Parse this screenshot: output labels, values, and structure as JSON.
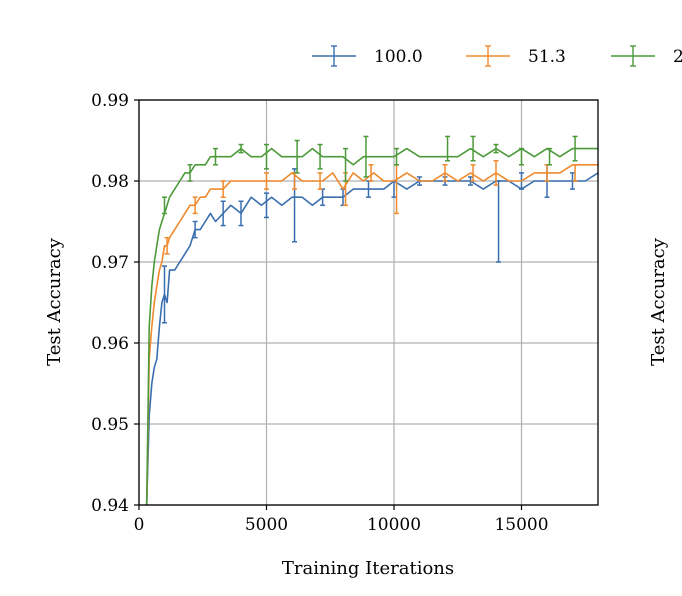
{
  "chart_data": {
    "type": "line",
    "xlabel": "Training Iterations",
    "ylabel": "Test Accuracy",
    "right_panel_ylabel": "Test Accuracy",
    "xlim": [
      0,
      18000
    ],
    "ylim": [
      0.94,
      0.99
    ],
    "xticks": [
      0,
      5000,
      10000,
      15000
    ],
    "xtick_labels": [
      "0",
      "5000",
      "10000",
      "15000"
    ],
    "yticks": [
      0.94,
      0.95,
      0.96,
      0.97,
      0.98,
      0.99
    ],
    "ytick_labels": [
      "0.94",
      "0.95",
      "0.96",
      "0.97",
      "0.98",
      "0.99"
    ],
    "grid": true,
    "legend_position": "top-right (clipped)",
    "series": [
      {
        "name": "100.0",
        "color": "#3a6faf",
        "x": [
          300,
          400,
          500,
          600,
          700,
          800,
          900,
          1000,
          1100,
          1200,
          1400,
          1600,
          1800,
          2000,
          2200,
          2400,
          2600,
          2800,
          3000,
          3300,
          3600,
          4000,
          4400,
          4800,
          5200,
          5600,
          6000,
          6400,
          6800,
          7200,
          7600,
          8000,
          8400,
          8800,
          9200,
          9600,
          10000,
          10500,
          11000,
          11500,
          12000,
          12500,
          13000,
          13500,
          14000,
          14500,
          15000,
          15500,
          16000,
          16500,
          17000,
          17500,
          18000
        ],
        "values": [
          0.94,
          0.951,
          0.955,
          0.957,
          0.958,
          0.962,
          0.965,
          0.966,
          0.965,
          0.969,
          0.969,
          0.97,
          0.971,
          0.972,
          0.974,
          0.974,
          0.975,
          0.976,
          0.975,
          0.976,
          0.977,
          0.976,
          0.978,
          0.977,
          0.978,
          0.977,
          0.978,
          0.978,
          0.977,
          0.978,
          0.978,
          0.978,
          0.979,
          0.979,
          0.979,
          0.979,
          0.98,
          0.979,
          0.98,
          0.98,
          0.98,
          0.98,
          0.98,
          0.979,
          0.98,
          0.98,
          0.979,
          0.98,
          0.98,
          0.98,
          0.98,
          0.98,
          0.981
        ],
        "errorbars": [
          {
            "x": 1000,
            "y": 0.966,
            "err": 0.0035
          },
          {
            "x": 2200,
            "y": 0.974,
            "err": 0.001
          },
          {
            "x": 3300,
            "y": 0.976,
            "err": 0.0015
          },
          {
            "x": 4000,
            "y": 0.976,
            "err": 0.0015
          },
          {
            "x": 5000,
            "y": 0.977,
            "err": 0.0015
          },
          {
            "x": 6100,
            "y": 0.977,
            "err": 0.0045
          },
          {
            "x": 7200,
            "y": 0.978,
            "err": 0.001
          },
          {
            "x": 8000,
            "y": 0.978,
            "err": 0.001
          },
          {
            "x": 9000,
            "y": 0.979,
            "err": 0.001
          },
          {
            "x": 10000,
            "y": 0.979,
            "err": 0.001
          },
          {
            "x": 11000,
            "y": 0.98,
            "err": 0.0005
          },
          {
            "x": 12000,
            "y": 0.98,
            "err": 0.0005
          },
          {
            "x": 13000,
            "y": 0.98,
            "err": 0.0005
          },
          {
            "x": 14100,
            "y": 0.975,
            "err": 0.005
          },
          {
            "x": 15000,
            "y": 0.98,
            "err": 0.001
          },
          {
            "x": 16000,
            "y": 0.98,
            "err": 0.002
          },
          {
            "x": 17000,
            "y": 0.98,
            "err": 0.001
          }
        ]
      },
      {
        "name": "51.3",
        "color": "#f08a2e",
        "x": [
          300,
          400,
          500,
          600,
          700,
          800,
          900,
          1000,
          1100,
          1200,
          1400,
          1600,
          1800,
          2000,
          2200,
          2400,
          2600,
          2800,
          3000,
          3300,
          3600,
          4000,
          4400,
          4800,
          5200,
          5600,
          6000,
          6400,
          6800,
          7200,
          7600,
          8000,
          8400,
          8800,
          9200,
          9600,
          10000,
          10500,
          11000,
          11500,
          12000,
          12500,
          13000,
          13500,
          14000,
          14500,
          15000,
          15500,
          16000,
          16500,
          17000,
          17500,
          18000
        ],
        "values": [
          0.94,
          0.958,
          0.962,
          0.965,
          0.967,
          0.969,
          0.97,
          0.972,
          0.972,
          0.973,
          0.974,
          0.975,
          0.976,
          0.977,
          0.977,
          0.978,
          0.978,
          0.979,
          0.979,
          0.979,
          0.98,
          0.98,
          0.98,
          0.98,
          0.98,
          0.98,
          0.981,
          0.98,
          0.98,
          0.98,
          0.981,
          0.979,
          0.981,
          0.98,
          0.981,
          0.98,
          0.98,
          0.981,
          0.98,
          0.98,
          0.981,
          0.98,
          0.981,
          0.98,
          0.981,
          0.98,
          0.98,
          0.981,
          0.981,
          0.981,
          0.982,
          0.982,
          0.982
        ],
        "errorbars": [
          {
            "x": 1100,
            "y": 0.972,
            "err": 0.001
          },
          {
            "x": 2200,
            "y": 0.977,
            "err": 0.001
          },
          {
            "x": 3300,
            "y": 0.979,
            "err": 0.001
          },
          {
            "x": 5000,
            "y": 0.98,
            "err": 0.001
          },
          {
            "x": 6100,
            "y": 0.98,
            "err": 0.001
          },
          {
            "x": 7100,
            "y": 0.98,
            "err": 0.001
          },
          {
            "x": 8100,
            "y": 0.979,
            "err": 0.002
          },
          {
            "x": 9100,
            "y": 0.981,
            "err": 0.001
          },
          {
            "x": 10100,
            "y": 0.979,
            "err": 0.003
          },
          {
            "x": 12000,
            "y": 0.981,
            "err": 0.001
          },
          {
            "x": 13100,
            "y": 0.981,
            "err": 0.001
          },
          {
            "x": 14000,
            "y": 0.981,
            "err": 0.0015
          },
          {
            "x": 16000,
            "y": 0.981,
            "err": 0.001
          },
          {
            "x": 17100,
            "y": 0.981,
            "err": 0.001
          }
        ]
      },
      {
        "name": "2",
        "color": "#4c9a3a",
        "x": [
          300,
          400,
          500,
          600,
          700,
          800,
          900,
          1000,
          1100,
          1200,
          1400,
          1600,
          1800,
          2000,
          2200,
          2400,
          2600,
          2800,
          3000,
          3300,
          3600,
          4000,
          4400,
          4800,
          5200,
          5600,
          6000,
          6400,
          6800,
          7200,
          7600,
          8000,
          8400,
          8800,
          9200,
          9600,
          10000,
          10500,
          11000,
          11500,
          12000,
          12500,
          13000,
          13500,
          14000,
          14500,
          15000,
          15500,
          16000,
          16500,
          17000,
          17500,
          18000
        ],
        "values": [
          0.94,
          0.962,
          0.967,
          0.97,
          0.972,
          0.974,
          0.975,
          0.976,
          0.977,
          0.978,
          0.979,
          0.98,
          0.981,
          0.981,
          0.982,
          0.982,
          0.982,
          0.983,
          0.983,
          0.983,
          0.983,
          0.984,
          0.983,
          0.983,
          0.984,
          0.983,
          0.983,
          0.983,
          0.984,
          0.983,
          0.983,
          0.983,
          0.982,
          0.983,
          0.983,
          0.983,
          0.983,
          0.984,
          0.983,
          0.983,
          0.983,
          0.983,
          0.984,
          0.983,
          0.984,
          0.983,
          0.984,
          0.983,
          0.984,
          0.983,
          0.984,
          0.984,
          0.984
        ],
        "errorbars": [
          {
            "x": 1000,
            "y": 0.977,
            "err": 0.001
          },
          {
            "x": 2000,
            "y": 0.981,
            "err": 0.001
          },
          {
            "x": 3000,
            "y": 0.983,
            "err": 0.001
          },
          {
            "x": 4000,
            "y": 0.984,
            "err": 0.0005
          },
          {
            "x": 5000,
            "y": 0.983,
            "err": 0.0015
          },
          {
            "x": 6200,
            "y": 0.983,
            "err": 0.002
          },
          {
            "x": 7100,
            "y": 0.983,
            "err": 0.0015
          },
          {
            "x": 8100,
            "y": 0.982,
            "err": 0.002
          },
          {
            "x": 8900,
            "y": 0.983,
            "err": 0.0025
          },
          {
            "x": 10100,
            "y": 0.983,
            "err": 0.001
          },
          {
            "x": 12100,
            "y": 0.984,
            "err": 0.0015
          },
          {
            "x": 13100,
            "y": 0.984,
            "err": 0.0015
          },
          {
            "x": 14000,
            "y": 0.984,
            "err": 0.0005
          },
          {
            "x": 15000,
            "y": 0.983,
            "err": 0.001
          },
          {
            "x": 16100,
            "y": 0.983,
            "err": 0.001
          },
          {
            "x": 17100,
            "y": 0.984,
            "err": 0.0015
          }
        ]
      }
    ]
  }
}
